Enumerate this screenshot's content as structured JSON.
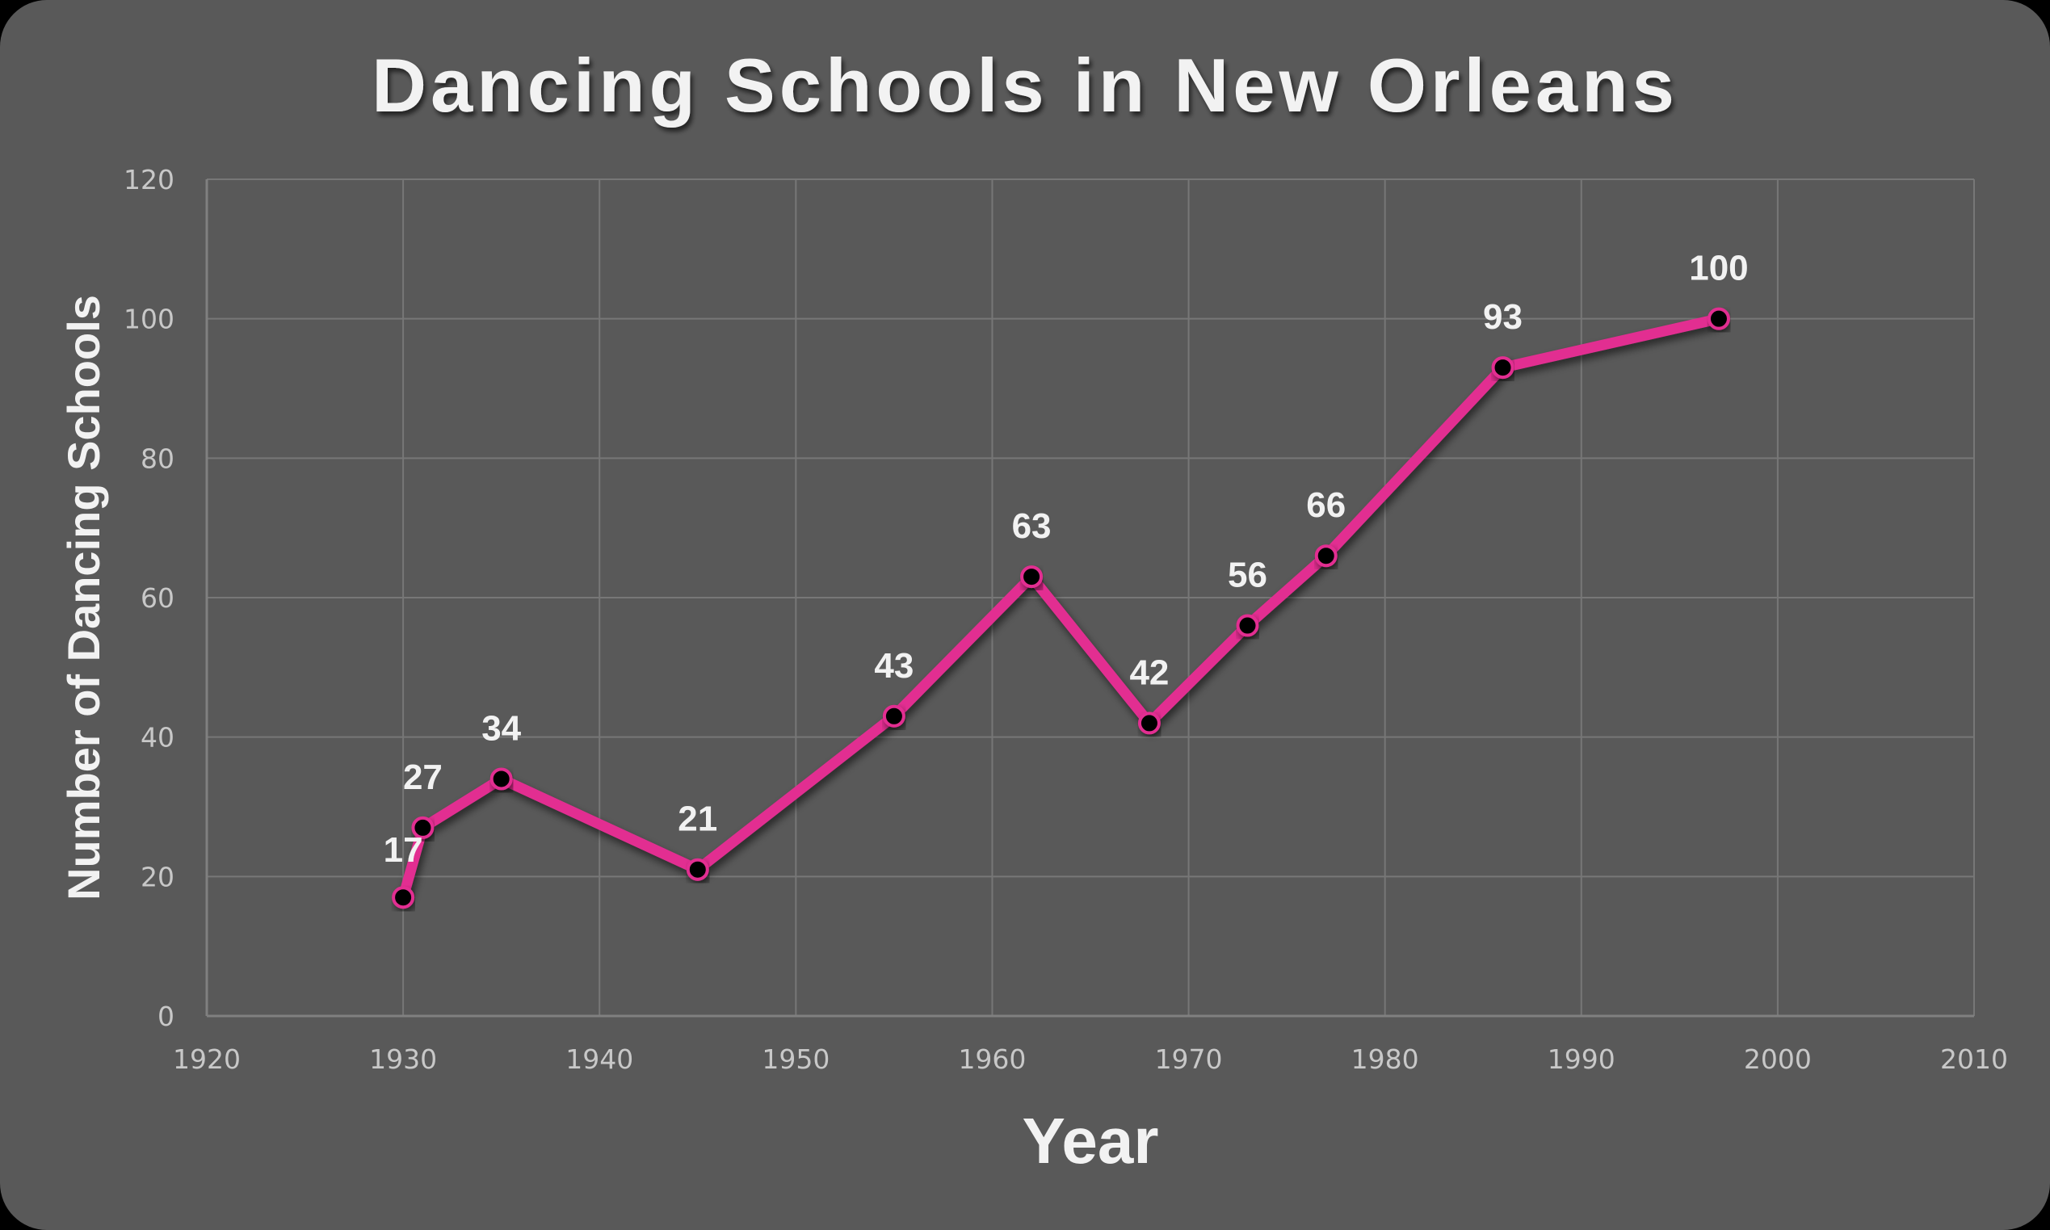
{
  "chart_data": {
    "type": "line",
    "title": "Dancing Schools in New Orleans",
    "xlabel": "Year",
    "ylabel": "Number of Dancing Schools",
    "xlim": [
      1920,
      2010
    ],
    "ylim": [
      0,
      120
    ],
    "x_ticks": [
      1920,
      1930,
      1940,
      1950,
      1960,
      1970,
      1980,
      1990,
      2000,
      2010
    ],
    "y_ticks": [
      0,
      20,
      40,
      60,
      80,
      100,
      120
    ],
    "grid": true,
    "legend": null,
    "series": [
      {
        "name": "Dancing Schools",
        "color": "#e22d91",
        "marker_color": "#000000",
        "x": [
          1930,
          1931,
          1935,
          1945,
          1955,
          1962,
          1968,
          1973,
          1977,
          1986,
          1997
        ],
        "values": [
          17,
          27,
          34,
          21,
          43,
          63,
          42,
          56,
          66,
          93,
          100
        ]
      }
    ],
    "data_labels": [
      "17",
      "27",
      "34",
      "21",
      "43",
      "63",
      "42",
      "56",
      "66",
      "93",
      "100"
    ]
  },
  "colors": {
    "background": "#595959",
    "line": "#e22d91",
    "text": "#f2f2f2",
    "tick_text": "#c8c8c8",
    "grid": "#777777"
  }
}
